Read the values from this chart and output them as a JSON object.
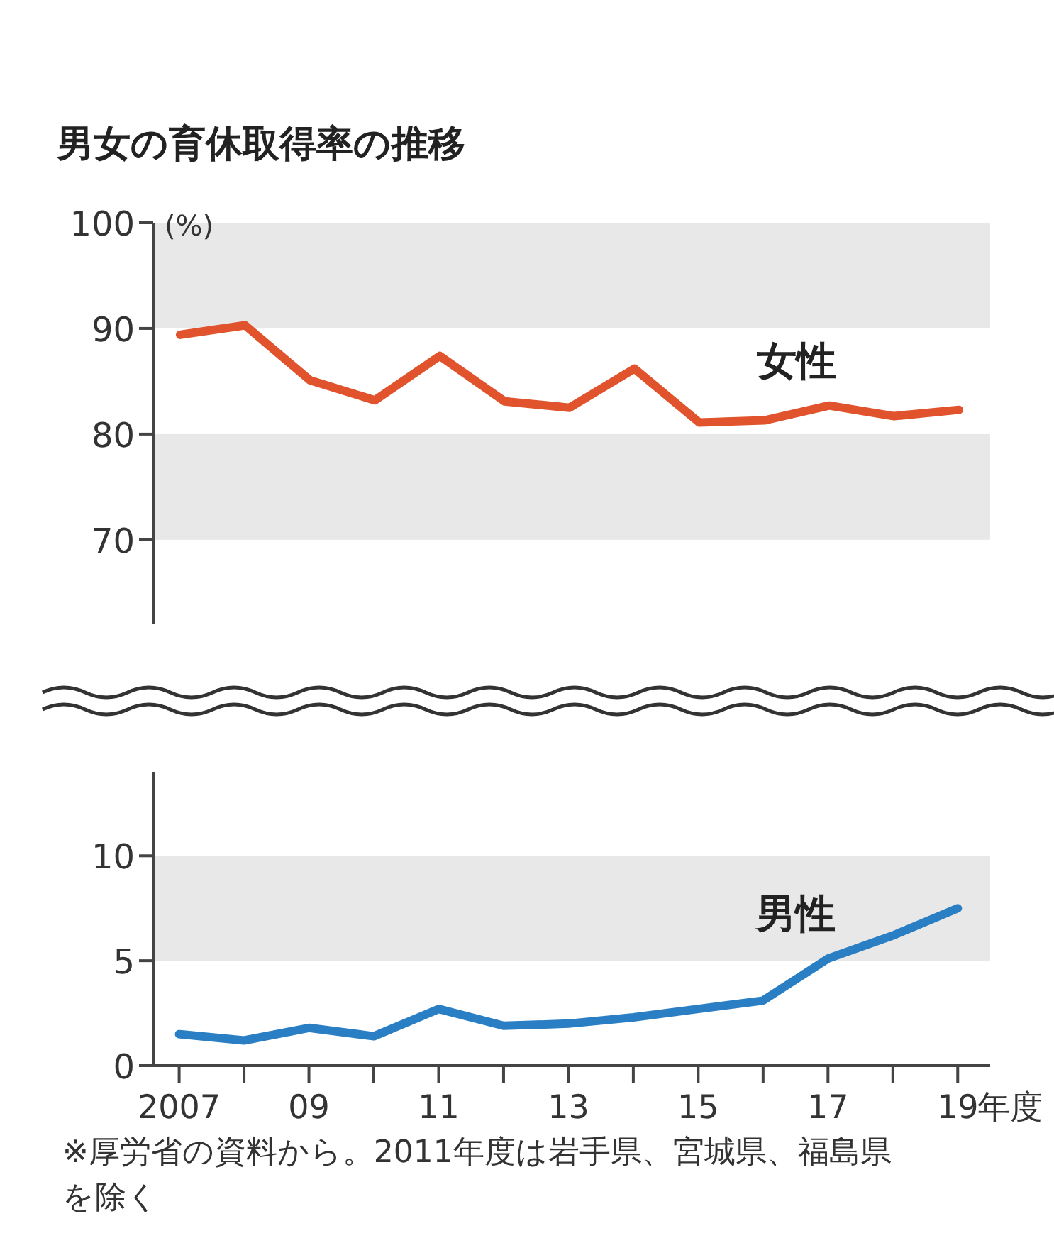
{
  "chart_data": [
    {
      "type": "line",
      "title": "男女の育休取得率の推移",
      "ylabel": "(%)",
      "categories": [
        null,
        null,
        null,
        null,
        null,
        null,
        null,
        null,
        null,
        null,
        null,
        null,
        null
      ],
      "series": [
        {
          "name": "女性",
          "color": "#e0532d",
          "values": [
            89.4,
            90.3,
            85.1,
            83.2,
            87.4,
            83.1,
            82.5,
            86.2,
            81.1,
            81.3,
            82.7,
            81.7,
            82.3
          ]
        }
      ],
      "ylim": [
        62,
        100
      ],
      "yticks": [
        70,
        80,
        90,
        100
      ],
      "tick_labels": "y",
      "bands": [
        {
          "axis": "y",
          "from": 90,
          "to": 100,
          "color": "#e8e8e8"
        },
        {
          "axis": "y",
          "from": 70,
          "to": 80,
          "color": "#e8e8e8"
        }
      ]
    },
    {
      "type": "line",
      "x": [
        2007,
        2008,
        2009,
        2010,
        2011,
        2012,
        2013,
        2014,
        2015,
        2016,
        2017,
        2018,
        2019
      ],
      "series": [
        {
          "name": "男性",
          "color": "#2a7fc4",
          "values": [
            1.5,
            1.2,
            1.8,
            1.4,
            2.7,
            1.9,
            2.0,
            2.3,
            2.7,
            3.1,
            5.1,
            6.2,
            7.5
          ]
        }
      ],
      "xlim": [
        2006.6,
        2019.5
      ],
      "xticks": [
        2007,
        {
          "value": 2008,
          "label": null
        },
        {
          "value": 2009,
          "label": "09"
        },
        {
          "value": 2010,
          "label": null
        },
        {
          "value": 2011,
          "label": "11"
        },
        {
          "value": 2012,
          "label": null
        },
        {
          "value": 2013,
          "label": "13"
        },
        {
          "value": 2014,
          "label": null
        },
        {
          "value": 2015,
          "label": "15"
        },
        {
          "value": 2016,
          "label": null
        },
        {
          "value": 2017,
          "label": "17"
        },
        {
          "value": 2018,
          "label": null
        },
        {
          "value": 2019,
          "label": "19"
        }
      ],
      "xlabel": "年度",
      "ylim": [
        0,
        14
      ],
      "yticks": [
        0,
        5,
        10
      ],
      "bands": [
        {
          "axis": "y",
          "from": 5,
          "to": 10,
          "color": "#e8e8e8"
        }
      ],
      "annotations": [
        "※厚労省の資料から。2011年度は岩手県、宮城県、福島県を除く"
      ]
    }
  ]
}
